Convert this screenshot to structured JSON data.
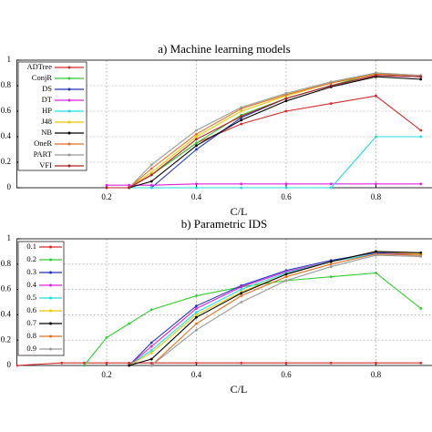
{
  "chart_data": [
    {
      "type": "line",
      "title": "a) Machine learning models",
      "x_label": "C/L",
      "x": [
        0.2,
        0.25,
        0.3,
        0.4,
        0.5,
        0.6,
        0.7,
        0.8,
        0.9
      ],
      "xlim": [
        0,
        0.925
      ],
      "ylim": [
        0,
        1
      ],
      "xticks": [
        0.2,
        0.4,
        0.6,
        0.8
      ],
      "yticks": [
        0,
        0.2,
        0.4,
        0.6,
        0.8,
        1
      ],
      "grid": true,
      "legend": "upper left",
      "series": [
        {
          "name": "ADTree",
          "color": "#d42a2a",
          "values": [
            0,
            0,
            0.1,
            0.35,
            0.5,
            0.6,
            0.66,
            0.72,
            0.45
          ]
        },
        {
          "name": "ConjR",
          "color": "#33cc33",
          "values": [
            0,
            0,
            0.1,
            0.35,
            0.57,
            0.7,
            0.8,
            0.9,
            0.88
          ]
        },
        {
          "name": "DS",
          "color": "#2233bb",
          "values": [
            0,
            0,
            0,
            0.3,
            0.55,
            0.7,
            0.8,
            0.88,
            0.87
          ]
        },
        {
          "name": "DT",
          "color": "#dd22dd",
          "values": [
            0.02,
            0.02,
            0.02,
            0.03,
            0.03,
            0.03,
            0.03,
            0.03,
            0.03
          ]
        },
        {
          "name": "HP",
          "color": "#22dddd",
          "values": [
            0,
            0,
            0,
            0,
            0,
            0,
            0,
            0.4,
            0.4
          ]
        },
        {
          "name": "J48",
          "color": "#e8c800",
          "values": [
            0,
            0,
            0.12,
            0.4,
            0.6,
            0.72,
            0.82,
            0.9,
            0.88
          ]
        },
        {
          "name": "NB",
          "color": "#000000",
          "values": [
            0,
            0,
            0.05,
            0.33,
            0.53,
            0.68,
            0.79,
            0.87,
            0.85
          ]
        },
        {
          "name": "OneR",
          "color": "#e07020",
          "values": [
            0,
            0,
            0.15,
            0.42,
            0.62,
            0.73,
            0.82,
            0.89,
            0.88
          ]
        },
        {
          "name": "PART",
          "color": "#999999",
          "values": [
            0,
            0,
            0.18,
            0.45,
            0.63,
            0.74,
            0.83,
            0.9,
            0.88
          ]
        },
        {
          "name": "VFI",
          "color": "#b02020",
          "values": [
            0,
            0,
            0.1,
            0.38,
            0.56,
            0.7,
            0.8,
            0.88,
            0.87
          ]
        }
      ]
    },
    {
      "type": "line",
      "title": "b) Parametric IDS",
      "x_label": "C/L",
      "x": [
        0,
        0.1,
        0.15,
        0.2,
        0.25,
        0.3,
        0.4,
        0.5,
        0.6,
        0.7,
        0.8,
        0.9
      ],
      "xlim": [
        0,
        0.925
      ],
      "ylim": [
        0,
        1
      ],
      "xticks": [
        0.2,
        0.4,
        0.6,
        0.8
      ],
      "yticks": [
        0,
        0.2,
        0.4,
        0.6,
        0.8,
        1
      ],
      "grid": true,
      "legend": "upper left",
      "series": [
        {
          "name": "0.1",
          "color": "#d42a2a",
          "values": [
            0,
            0.02,
            0.02,
            0.02,
            0.02,
            0.02,
            0.02,
            0.02,
            0.02,
            0.02,
            0.02,
            0.02
          ]
        },
        {
          "name": "0.2",
          "color": "#33cc33",
          "values": [
            null,
            null,
            0,
            0.22,
            0.33,
            0.44,
            0.55,
            0.62,
            0.67,
            0.7,
            0.73,
            0.45
          ]
        },
        {
          "name": "0.3",
          "color": "#2233bb",
          "values": [
            null,
            null,
            null,
            null,
            0,
            0.18,
            0.47,
            0.63,
            0.75,
            0.83,
            0.89,
            0.88
          ]
        },
        {
          "name": "0.4",
          "color": "#dd22dd",
          "values": [
            null,
            null,
            null,
            null,
            0,
            0.15,
            0.45,
            0.62,
            0.74,
            0.82,
            0.88,
            0.88
          ]
        },
        {
          "name": "0.5",
          "color": "#22dddd",
          "values": [
            null,
            null,
            null,
            null,
            0,
            0.12,
            0.42,
            0.6,
            0.73,
            0.82,
            0.88,
            0.87
          ]
        },
        {
          "name": "0.6",
          "color": "#e8c800",
          "values": [
            null,
            null,
            null,
            null,
            0,
            0.1,
            0.4,
            0.58,
            0.72,
            0.82,
            0.9,
            0.88
          ]
        },
        {
          "name": "0.7",
          "color": "#000000",
          "values": [
            null,
            null,
            null,
            null,
            0,
            0.05,
            0.38,
            0.57,
            0.72,
            0.82,
            0.9,
            0.89
          ]
        },
        {
          "name": "0.8",
          "color": "#e07020",
          "values": [
            null,
            null,
            null,
            null,
            null,
            0,
            0.33,
            0.55,
            0.7,
            0.8,
            0.88,
            0.87
          ]
        },
        {
          "name": "0.9",
          "color": "#999999",
          "values": [
            null,
            null,
            null,
            null,
            null,
            0,
            0.28,
            0.5,
            0.67,
            0.78,
            0.87,
            0.86
          ]
        }
      ]
    }
  ]
}
